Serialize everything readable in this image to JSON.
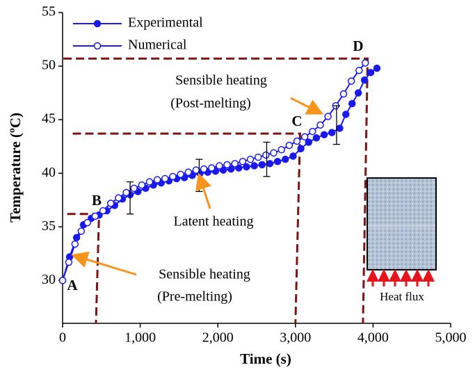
{
  "chart_data": {
    "type": "line",
    "x_label": "Time (s)",
    "y_label": "Temperature (ºC)",
    "xlim": [
      0,
      5000
    ],
    "ylim": [
      26,
      55
    ],
    "xticks": [
      0,
      {
        "value": 1000,
        "label": "1,000"
      },
      {
        "value": 2000,
        "label": "2,000"
      },
      {
        "value": 3000,
        "label": "3,000"
      },
      {
        "value": 4000,
        "label": "4,000"
      },
      {
        "value": 5000,
        "label": "5,000"
      }
    ],
    "yticks": [
      30,
      35,
      40,
      45,
      50,
      55
    ],
    "legend": "top-left",
    "series": [
      {
        "name": "Experimental",
        "color": "#1a1aee",
        "marker": "filled",
        "x": [
          0,
          90,
          180,
          270,
          370,
          470,
          570,
          670,
          770,
          870,
          970,
          1070,
          1170,
          1270,
          1370,
          1470,
          1570,
          1670,
          1770,
          1870,
          1970,
          2070,
          2170,
          2270,
          2370,
          2470,
          2570,
          2670,
          2770,
          2870,
          2970,
          3070,
          3170,
          3270,
          3370,
          3470,
          3570,
          3650,
          3730,
          3810,
          3890,
          3970,
          4050
        ],
        "values": [
          30.0,
          32.2,
          34.0,
          35.2,
          35.8,
          36.1,
          36.5,
          37.0,
          37.6,
          38.0,
          38.3,
          38.6,
          38.9,
          39.1,
          39.3,
          39.5,
          39.6,
          39.8,
          40.0,
          40.1,
          40.2,
          40.3,
          40.4,
          40.5,
          40.6,
          40.7,
          40.8,
          40.9,
          41.1,
          41.3,
          41.6,
          42.3,
          42.9,
          43.3,
          43.6,
          43.8,
          44.2,
          45.5,
          46.5,
          47.5,
          48.7,
          49.4,
          49.8
        ]
      },
      {
        "name": "Numerical",
        "color": "#1a1aee",
        "marker": "open",
        "x": [
          0,
          80,
          160,
          240,
          320,
          420,
          520,
          620,
          720,
          820,
          920,
          1020,
          1120,
          1220,
          1320,
          1420,
          1520,
          1620,
          1720,
          1820,
          1920,
          2020,
          2120,
          2220,
          2320,
          2420,
          2520,
          2620,
          2720,
          2820,
          2920,
          3020,
          3120,
          3220,
          3320,
          3420,
          3520,
          3620,
          3720,
          3820,
          3900
        ],
        "values": [
          30.0,
          31.7,
          33.4,
          34.6,
          35.4,
          36.0,
          36.5,
          37.2,
          37.7,
          38.2,
          38.6,
          38.9,
          39.2,
          39.4,
          39.5,
          39.7,
          39.9,
          40.1,
          40.3,
          40.4,
          40.5,
          40.7,
          40.8,
          40.9,
          41.1,
          41.3,
          41.5,
          41.7,
          41.9,
          42.2,
          42.6,
          43.0,
          43.4,
          43.9,
          44.5,
          45.3,
          46.3,
          47.4,
          48.6,
          49.6,
          50.3
        ]
      }
    ],
    "error_bars": [
      {
        "x": 870,
        "value": 37.7,
        "error": 1.5
      },
      {
        "x": 1760,
        "value": 39.8,
        "error": 1.5
      },
      {
        "x": 2630,
        "value": 41.3,
        "error": 1.6
      },
      {
        "x": 3530,
        "value": 44.5,
        "error": 1.8
      }
    ],
    "guide_color": "#7b1414",
    "guides": [
      {
        "x": [
          60,
          470,
          430
        ],
        "values": [
          36.2,
          36.2,
          26
        ]
      },
      {
        "x": [
          130,
          3060,
          3000
        ],
        "values": [
          43.7,
          43.7,
          26
        ]
      },
      {
        "x": [
          10,
          3930,
          3870
        ],
        "values": [
          50.7,
          50.7,
          26
        ]
      }
    ],
    "annotations": [
      "A",
      "B",
      "C",
      "D",
      "Sensible heating",
      "(Post-melting)",
      "Latent heating",
      "Sensible heating",
      "(Pre-melting)",
      "Heat flux"
    ]
  }
}
